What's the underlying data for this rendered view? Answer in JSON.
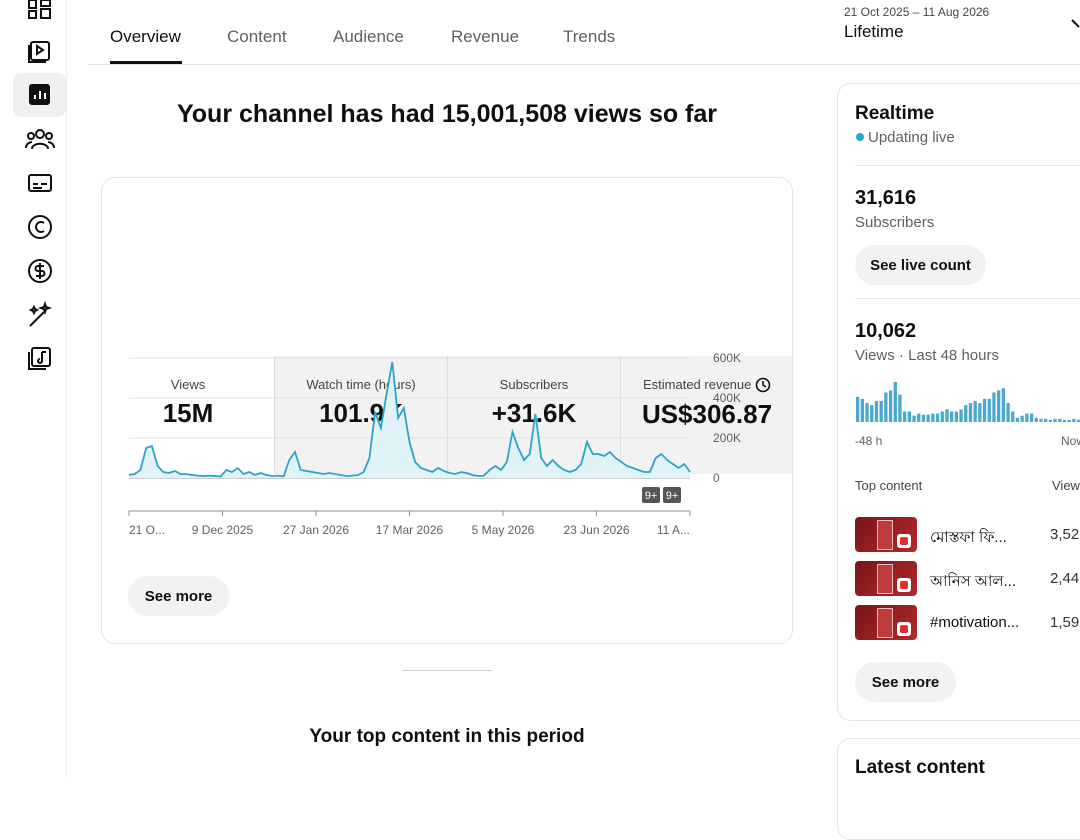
{
  "tabs": [
    "Overview",
    "Content",
    "Audience",
    "Revenue",
    "Trends"
  ],
  "date_range": {
    "range": "21 Oct 2025 – 11 Aug 2026",
    "label": "Lifetime"
  },
  "headline": "Your channel has had 15,001,508 views so far",
  "metrics": [
    {
      "label": "Views",
      "value": "15M"
    },
    {
      "label": "Watch time (hours)",
      "value": "101.9K"
    },
    {
      "label": "Subscribers",
      "value": "+31.6K"
    },
    {
      "label": "Estimated revenue",
      "value": "US$306.87"
    }
  ],
  "see_more": "See more",
  "top_content_heading": "Your top content in this period",
  "realtime": {
    "title": "Realtime",
    "status": "Updating live",
    "subscribers": "31,616",
    "subscribers_label": "Subscribers",
    "live_button": "See live count",
    "views": "10,062",
    "views_label": "Views · Last 48 hours",
    "top_content": "Top content",
    "top_views_header": "Views",
    "rows": [
      {
        "title": "মোস্তফা ফি...",
        "views": "3,52"
      },
      {
        "title": "আনিস আল...",
        "views": "2,44"
      },
      {
        "title": "#motivation...",
        "views": "1,59"
      }
    ],
    "see_more": "See more",
    "latest": "Latest content"
  },
  "chart_data": [
    {
      "type": "line",
      "color": "#2ea3c9",
      "fill": "#e1f3f8",
      "grid": true,
      "x": [
        0,
        3,
        6,
        9,
        12,
        15,
        18,
        21,
        24,
        27,
        30,
        33,
        36,
        39,
        42,
        45,
        48,
        51,
        54,
        57,
        60,
        63,
        66,
        69,
        72,
        75,
        78,
        81,
        84,
        87,
        90,
        93,
        96,
        99,
        102,
        105,
        108,
        111,
        114,
        117,
        120,
        123,
        126,
        129,
        132,
        135,
        138,
        141,
        144,
        147,
        150,
        153,
        156,
        159,
        162,
        165,
        168,
        171,
        174,
        177,
        180,
        183,
        186,
        189,
        192,
        195,
        198,
        201,
        204,
        207,
        210,
        213,
        216,
        219,
        222,
        225,
        228,
        231,
        234,
        237,
        240,
        243,
        246,
        249,
        252,
        255,
        258,
        261,
        264,
        267,
        270,
        273,
        276,
        279,
        282,
        285,
        288,
        291,
        294
      ],
      "values": [
        15000,
        20000,
        40000,
        150000,
        160000,
        60000,
        30000,
        25000,
        35000,
        20000,
        20000,
        15000,
        12000,
        10000,
        12000,
        10000,
        8000,
        40000,
        30000,
        50000,
        20000,
        30000,
        15000,
        25000,
        15000,
        10000,
        12000,
        8000,
        90000,
        130000,
        40000,
        35000,
        30000,
        25000,
        20000,
        25000,
        20000,
        15000,
        10000,
        12000,
        15000,
        30000,
        100000,
        330000,
        250000,
        420000,
        580000,
        300000,
        350000,
        180000,
        80000,
        50000,
        40000,
        30000,
        50000,
        35000,
        25000,
        20000,
        30000,
        25000,
        15000,
        10000,
        12000,
        40000,
        60000,
        40000,
        80000,
        230000,
        150000,
        90000,
        120000,
        320000,
        100000,
        60000,
        90000,
        60000,
        40000,
        30000,
        40000,
        70000,
        180000,
        120000,
        120000,
        110000,
        130000,
        100000,
        80000,
        60000,
        50000,
        40000,
        30000,
        30000,
        100000,
        120000,
        90000,
        70000,
        50000,
        70000,
        30000
      ],
      "xlim": [
        0,
        294
      ],
      "xticks": [
        {
          "value": 0,
          "label": "21 O..."
        },
        {
          "value": 49,
          "label": "9 Dec 2025"
        },
        {
          "value": 98,
          "label": "27 Jan 2026"
        },
        {
          "value": 147,
          "label": "17 Mar 2026"
        },
        {
          "value": 196,
          "label": "5 May 2026"
        },
        {
          "value": 245,
          "label": "23 Jun 2026"
        },
        {
          "value": 294,
          "label": "11 A..."
        }
      ],
      "ylim": [
        0,
        600000
      ],
      "yticks": [
        {
          "value": 0,
          "label": "0"
        },
        {
          "value": 200000,
          "label": "200K"
        },
        {
          "value": 400000,
          "label": "400K"
        },
        {
          "value": 600000,
          "label": "600K"
        }
      ],
      "annotations": [
        "9+",
        "9+"
      ]
    },
    {
      "type": "bar",
      "color": "#4aa9cc",
      "x_labels": [
        "-48 h",
        "Now"
      ],
      "values": [
        168,
        154,
        126,
        112,
        140,
        140,
        196,
        210,
        266,
        182,
        70,
        70,
        42,
        56,
        49,
        49,
        56,
        56,
        70,
        84,
        70,
        70,
        84,
        112,
        126,
        140,
        126,
        154,
        154,
        196,
        210,
        224,
        126,
        70,
        28,
        42,
        56,
        56,
        28,
        21,
        21,
        14,
        21,
        21,
        14,
        14,
        21,
        14
      ]
    }
  ]
}
